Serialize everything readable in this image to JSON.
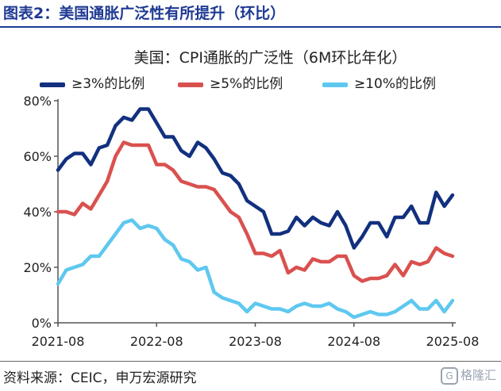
{
  "figure_title": "图表2：美国通胀广泛性有所提升（环比）",
  "source": "资料来源：CEIC，申万宏源研究",
  "watermark": {
    "icon": "G",
    "text": "格隆汇"
  },
  "colors": {
    "title": "#1f3a93",
    "s1": "#12307f",
    "s2": "#d9514f",
    "s3": "#5ec8ef"
  },
  "chart_data": {
    "type": "line",
    "title": "美国：CPI通胀的广泛性（6M环比年化）",
    "xlabel": "",
    "ylabel": "",
    "ylim": [
      0,
      80
    ],
    "yticks": [
      "0%",
      "20%",
      "40%",
      "60%",
      "80%"
    ],
    "yticks_values": [
      0,
      20,
      40,
      60,
      80
    ],
    "xticks": [
      "2021-08",
      "2022-08",
      "2023-08",
      "2024-08",
      "2025-08"
    ],
    "xticks_index": [
      0,
      12,
      24,
      36,
      48
    ],
    "legend_position": "top",
    "grid": false,
    "x": [
      "2021-08",
      "2021-09",
      "2021-10",
      "2021-11",
      "2021-12",
      "2022-01",
      "2022-02",
      "2022-03",
      "2022-04",
      "2022-05",
      "2022-06",
      "2022-07",
      "2022-08",
      "2022-09",
      "2022-10",
      "2022-11",
      "2022-12",
      "2023-01",
      "2023-02",
      "2023-03",
      "2023-04",
      "2023-05",
      "2023-06",
      "2023-07",
      "2023-08",
      "2023-09",
      "2023-10",
      "2023-11",
      "2023-12",
      "2024-01",
      "2024-02",
      "2024-03",
      "2024-04",
      "2024-05",
      "2024-06",
      "2024-07",
      "2024-08",
      "2024-09",
      "2024-10",
      "2024-11",
      "2024-12",
      "2025-01",
      "2025-02",
      "2025-03",
      "2025-04",
      "2025-05",
      "2025-06",
      "2025-07",
      "2025-08"
    ],
    "series": [
      {
        "name": "≥3%的比例",
        "values": [
          55,
          59,
          61,
          61,
          57,
          63,
          64,
          71,
          74,
          73,
          77,
          77,
          72,
          67,
          67,
          62,
          60,
          65,
          63,
          59,
          54,
          53,
          50,
          44,
          42,
          40,
          32,
          32,
          33,
          38,
          35,
          38,
          36,
          35,
          40,
          35,
          27,
          31,
          36,
          36,
          31,
          38,
          38,
          42,
          36,
          36,
          47,
          42,
          46
        ]
      },
      {
        "name": "≥5%的比例",
        "values": [
          40,
          40,
          39,
          43,
          41,
          46,
          51,
          60,
          65,
          64,
          64,
          64,
          57,
          57,
          55,
          51,
          50,
          49,
          49,
          48,
          44,
          40,
          38,
          32,
          25,
          25,
          24,
          26,
          18,
          20,
          19,
          23,
          22,
          22,
          24,
          24,
          17,
          15,
          16,
          16,
          17,
          21,
          17,
          22,
          21,
          22,
          27,
          25,
          24
        ]
      },
      {
        "name": "≥10%的比例",
        "values": [
          14,
          19,
          20,
          21,
          24,
          24,
          28,
          32,
          36,
          37,
          34,
          35,
          34,
          30,
          28,
          23,
          22,
          19,
          20,
          11,
          9,
          8,
          7,
          4,
          7,
          6,
          5,
          5,
          4,
          6,
          7,
          6,
          6,
          7,
          5,
          4,
          2,
          3,
          4,
          3,
          3,
          4,
          6,
          8,
          5,
          5,
          8,
          4,
          8
        ]
      }
    ]
  }
}
